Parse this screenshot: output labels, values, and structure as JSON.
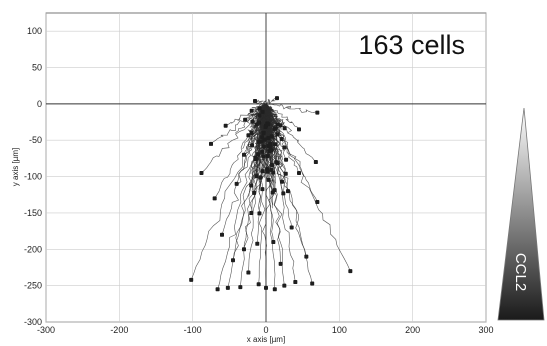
{
  "chart_data": {
    "type": "line",
    "title": "",
    "xlabel": "x axis [µm]",
    "ylabel": "y axis [µm]",
    "xlim": [
      -300,
      300
    ],
    "ylim": [
      -300,
      125
    ],
    "xticks": [
      -300,
      -200,
      -100,
      0,
      100,
      200,
      300
    ],
    "yticks": [
      100,
      50,
      0,
      -50,
      -100,
      -150,
      -200,
      -250,
      -300
    ],
    "grid": true,
    "annotation": "163 cells",
    "track_origin": [
      0,
      0
    ],
    "track_count": 163,
    "track_end_points": [
      {
        "x": -102,
        "y": -242
      },
      {
        "x": -66,
        "y": -255
      },
      {
        "x": -52,
        "y": -253
      },
      {
        "x": -35,
        "y": -252
      },
      {
        "x": -24,
        "y": -232
      },
      {
        "x": -10,
        "y": -248
      },
      {
        "x": 0,
        "y": -253
      },
      {
        "x": 12,
        "y": -255
      },
      {
        "x": 25,
        "y": -250
      },
      {
        "x": 40,
        "y": -245
      },
      {
        "x": 63,
        "y": -247
      },
      {
        "x": 115,
        "y": -230
      },
      {
        "x": -30,
        "y": -200
      },
      {
        "x": 20,
        "y": -220
      },
      {
        "x": 55,
        "y": -210
      },
      {
        "x": -60,
        "y": -180
      },
      {
        "x": 35,
        "y": -170
      },
      {
        "x": -70,
        "y": -130
      },
      {
        "x": 70,
        "y": -135
      },
      {
        "x": -88,
        "y": -95
      },
      {
        "x": 68,
        "y": -80
      },
      {
        "x": -75,
        "y": -55
      },
      {
        "x": 45,
        "y": -35
      },
      {
        "x": -55,
        "y": -30
      },
      {
        "x": 70,
        "y": -12
      },
      {
        "x": -15,
        "y": 4
      },
      {
        "x": 15,
        "y": 8
      },
      {
        "x": -40,
        "y": -110
      },
      {
        "x": 30,
        "y": -120
      },
      {
        "x": -20,
        "y": -150
      },
      {
        "x": 10,
        "y": -190
      },
      {
        "x": -45,
        "y": -215
      },
      {
        "x": 45,
        "y": -95
      },
      {
        "x": -30,
        "y": -70
      },
      {
        "x": 25,
        "y": -60
      },
      {
        "x": 0,
        "y": -30
      }
    ]
  },
  "gradient": {
    "label": "CCL2",
    "color_top": "#ffffff",
    "color_bottom": "#1a1a1a"
  },
  "colors": {
    "track": "#2a2a2a",
    "grid": "#cccccc",
    "axis": "#555555",
    "origin_lines": "#333333",
    "marker": "#1e1e1e"
  }
}
